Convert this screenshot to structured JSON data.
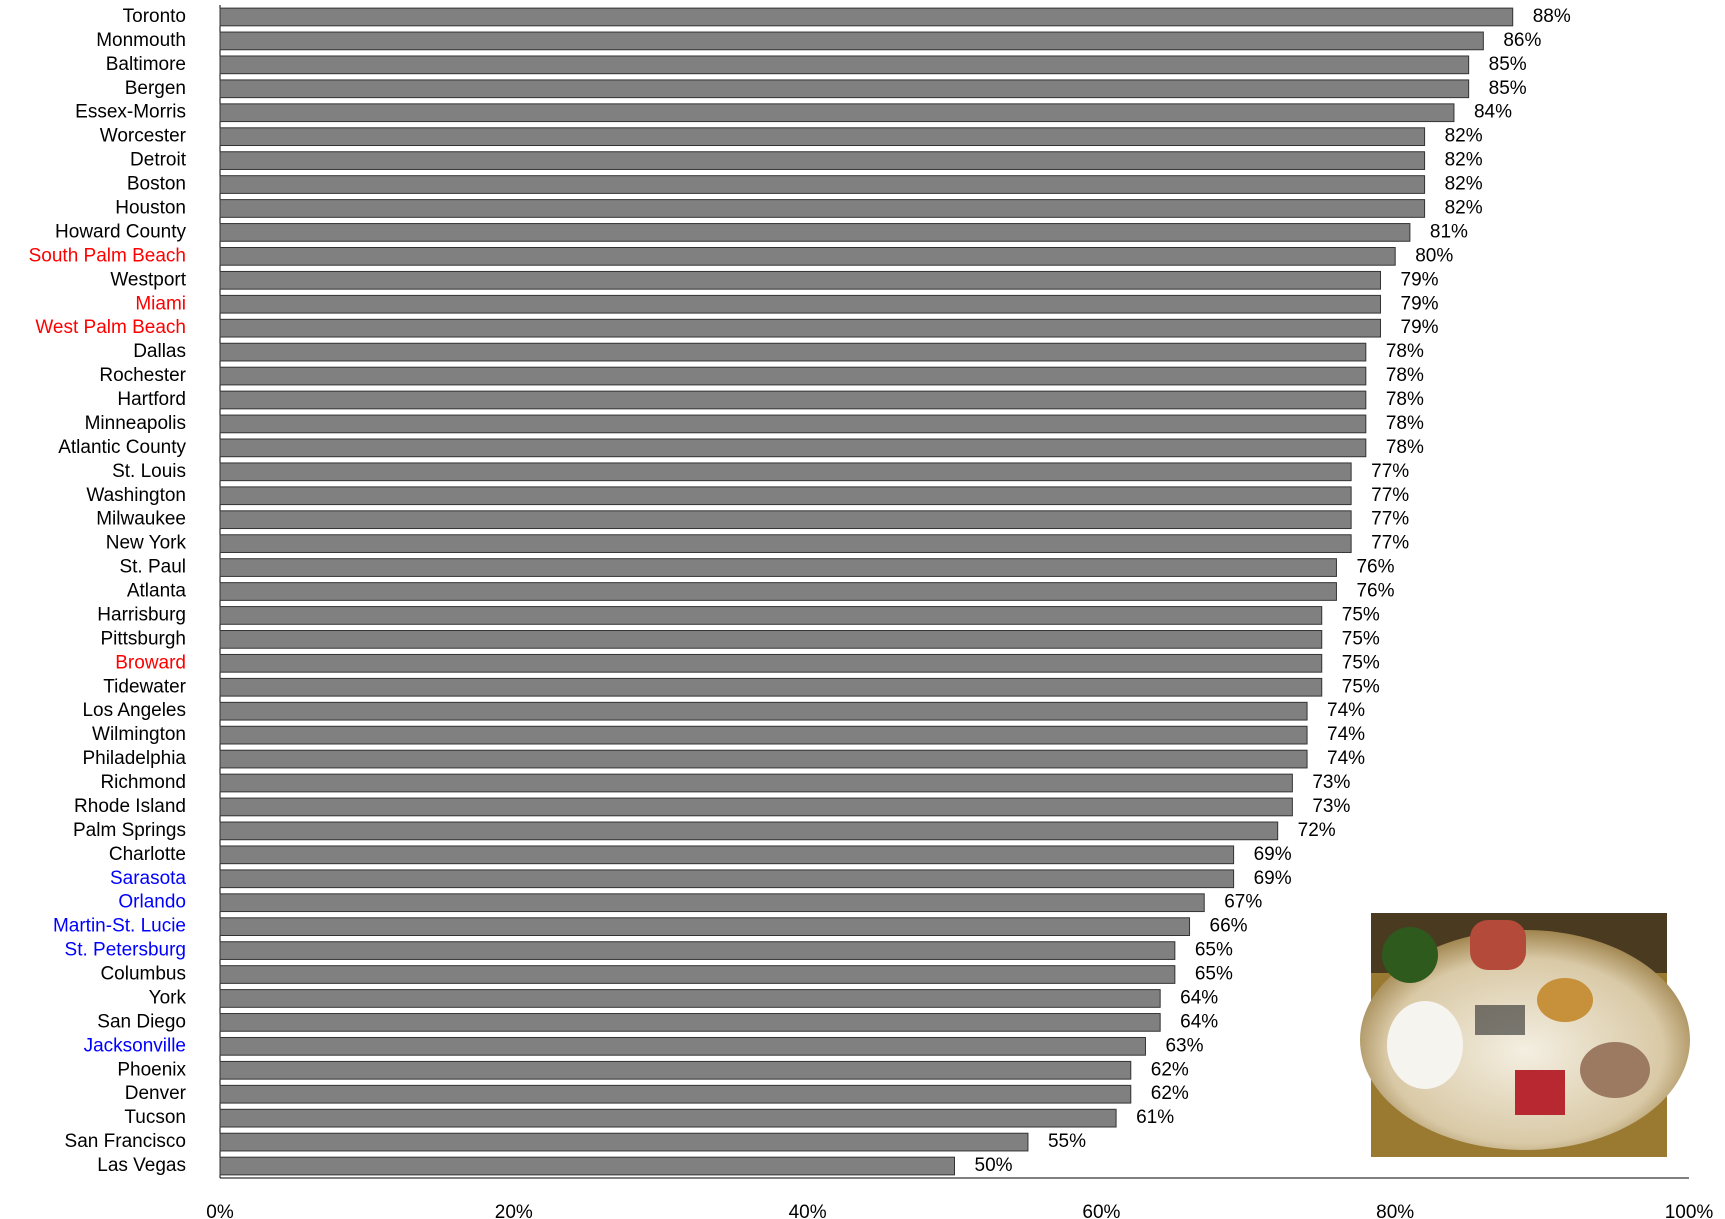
{
  "chart_data": {
    "type": "bar",
    "orientation": "horizontal",
    "color": "#808080",
    "categories": [
      "Toronto",
      "Monmouth",
      "Baltimore",
      "Bergen",
      "Essex-Morris",
      "Worcester",
      "Detroit",
      "Boston",
      "Houston",
      "Howard County",
      "South Palm Beach",
      "Westport",
      "Miami",
      "West Palm Beach",
      "Dallas",
      "Rochester",
      "Hartford",
      "Minneapolis",
      "Atlantic County",
      "St. Louis",
      "Washington",
      "Milwaukee",
      "New York",
      "St. Paul",
      "Atlanta",
      "Harrisburg",
      "Pittsburgh",
      "Broward",
      "Tidewater",
      "Los Angeles",
      "Wilmington",
      "Philadelphia",
      "Richmond",
      "Rhode Island",
      "Palm Springs",
      "Charlotte",
      "Sarasota",
      "Orlando",
      "Martin-St. Lucie",
      "St. Petersburg",
      "Columbus",
      "York",
      "San Diego",
      "Jacksonville",
      "Phoenix",
      "Denver",
      "Tucson",
      "San Francisco",
      "Las Vegas"
    ],
    "category_colors": [
      "#000000",
      "#000000",
      "#000000",
      "#000000",
      "#000000",
      "#000000",
      "#000000",
      "#000000",
      "#000000",
      "#000000",
      "#ff0000",
      "#000000",
      "#ff0000",
      "#ff0000",
      "#000000",
      "#000000",
      "#000000",
      "#000000",
      "#000000",
      "#000000",
      "#000000",
      "#000000",
      "#000000",
      "#000000",
      "#000000",
      "#000000",
      "#000000",
      "#ff0000",
      "#000000",
      "#000000",
      "#000000",
      "#000000",
      "#000000",
      "#000000",
      "#000000",
      "#000000",
      "#0000ff",
      "#0000ff",
      "#0000ff",
      "#0000ff",
      "#000000",
      "#000000",
      "#000000",
      "#0000ff",
      "#000000",
      "#000000",
      "#000000",
      "#000000",
      "#000000"
    ],
    "values": [
      88,
      86,
      85,
      85,
      84,
      82,
      82,
      82,
      82,
      81,
      80,
      79,
      79,
      79,
      78,
      78,
      78,
      78,
      78,
      77,
      77,
      77,
      77,
      76,
      76,
      75,
      75,
      75,
      75,
      74,
      74,
      74,
      73,
      73,
      72,
      69,
      69,
      67,
      66,
      65,
      65,
      64,
      64,
      63,
      62,
      62,
      61,
      55,
      50
    ],
    "value_labels": [
      "88%",
      "86%",
      "85%",
      "85%",
      "84%",
      "82%",
      "82%",
      "82%",
      "82%",
      "81%",
      "80%",
      "79%",
      "79%",
      "79%",
      "78%",
      "78%",
      "78%",
      "78%",
      "78%",
      "77%",
      "77%",
      "77%",
      "77%",
      "76%",
      "76%",
      "75%",
      "75%",
      "75%",
      "75%",
      "74%",
      "74%",
      "74%",
      "73%",
      "73%",
      "72%",
      "69%",
      "69%",
      "67%",
      "66%",
      "65%",
      "65%",
      "64%",
      "64%",
      "63%",
      "62%",
      "62%",
      "61%",
      "55%",
      "50%"
    ],
    "xlim": [
      0,
      100
    ],
    "xticks": [
      {
        "value": 0,
        "label": "0%"
      },
      {
        "value": 20,
        "label": "20%"
      },
      {
        "value": 40,
        "label": "40%"
      },
      {
        "value": 60,
        "label": "60%"
      },
      {
        "value": 80,
        "label": "80%"
      },
      {
        "value": 100,
        "label": "100%"
      }
    ]
  }
}
